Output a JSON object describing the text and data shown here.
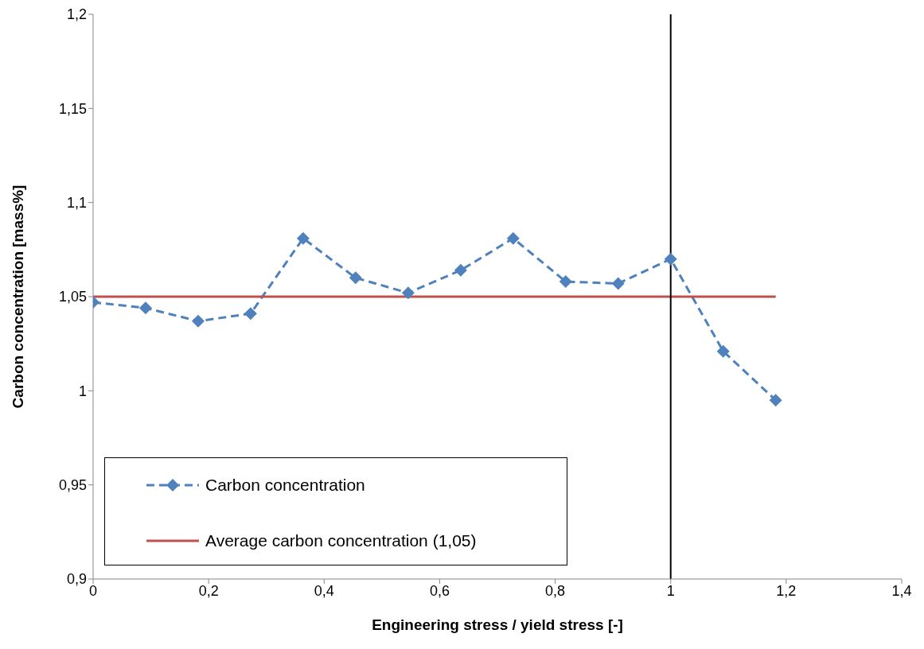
{
  "chart_data": {
    "type": "line",
    "xlabel": "Engineering stress / yield stress [-]",
    "ylabel": "Carbon concentration [mass%]",
    "xlim": [
      0,
      1.4
    ],
    "xticks": [
      {
        "value": 0,
        "label": "0"
      },
      {
        "value": 0.2,
        "label": "0,2"
      },
      {
        "value": 0.4,
        "label": "0,4"
      },
      {
        "value": 0.6,
        "label": "0,6"
      },
      {
        "value": 0.8,
        "label": "0,8"
      },
      {
        "value": 1,
        "label": "1"
      },
      {
        "value": 1.2,
        "label": "1,2"
      },
      {
        "value": 1.4,
        "label": "1,4"
      }
    ],
    "ylim": [
      0.9,
      1.2
    ],
    "yticks": [
      {
        "value": 0.9,
        "label": "0,9"
      },
      {
        "value": 0.95,
        "label": "0,95"
      },
      {
        "value": 1,
        "label": "1"
      },
      {
        "value": 1.05,
        "label": "1,05"
      },
      {
        "value": 1.1,
        "label": "1,1"
      },
      {
        "value": 1.15,
        "label": "1,15"
      },
      {
        "value": 1.2,
        "label": "1,2"
      }
    ],
    "grid": false,
    "legend": "bottom left",
    "series": [
      {
        "name": "Carbon concentration",
        "color": "#4f81bd",
        "marker": "diamond",
        "line_style": "dashed",
        "x": [
          0,
          0.0909,
          0.1818,
          0.2727,
          0.3636,
          0.4545,
          0.5455,
          0.6364,
          0.7273,
          0.8182,
          0.9091,
          1,
          1.0909,
          1.1818
        ],
        "values": [
          1.047,
          1.044,
          1.037,
          1.041,
          1.081,
          1.06,
          1.052,
          1.064,
          1.081,
          1.058,
          1.057,
          1.07,
          1.021,
          0.995
        ]
      },
      {
        "name": "Average carbon concentration (1,05)",
        "color": "#c0504d",
        "marker": "none",
        "line_style": "solid",
        "x": [
          0,
          1.1818
        ],
        "values": [
          1.05,
          1.05
        ]
      }
    ],
    "ref_lines": [
      {
        "axis": "x",
        "value": 1,
        "color": "#000000",
        "line_style": "solid"
      }
    ]
  }
}
